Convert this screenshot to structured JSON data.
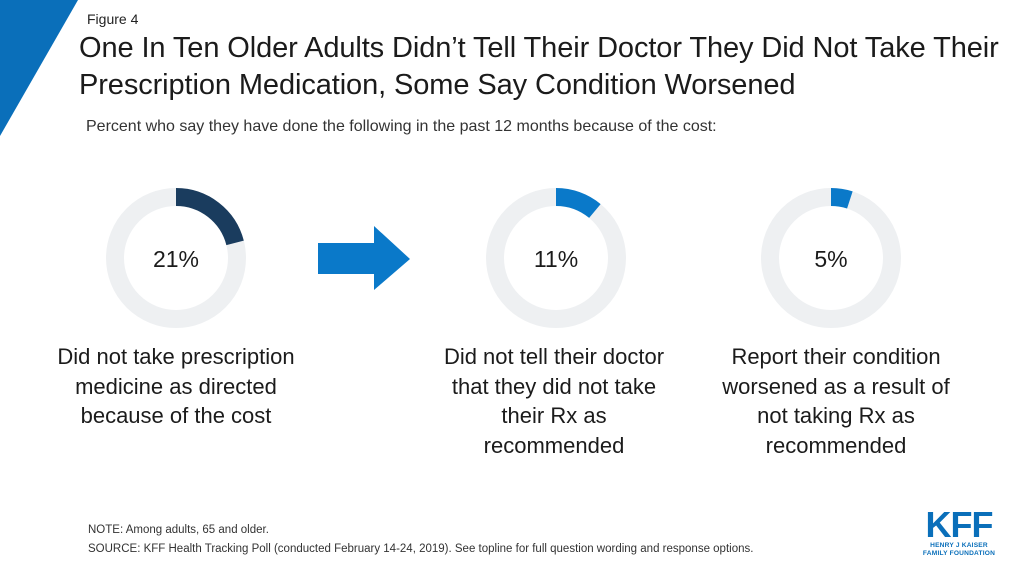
{
  "figure_label": "Figure 4",
  "title": "One In Ten Older Adults Didn’t Tell Their Doctor They Did Not Take Their Prescription Medication, Some Say Condition Worsened",
  "subtitle": "Percent who say they have done the following in the past 12 months because of the cost:",
  "chart_data": {
    "type": "donut",
    "unit": "%",
    "items": [
      {
        "value": 21,
        "value_label": "21%",
        "label": "Did not take prescription medicine as directed because of the cost",
        "color": "#1a3c5e"
      },
      {
        "value": 11,
        "value_label": "11%",
        "label": "Did not tell their doctor that they did not take their Rx as recommended",
        "color": "#0a79c9"
      },
      {
        "value": 5,
        "value_label": "5%",
        "label": "Report their condition worsened as a result of not taking Rx as recommended",
        "color": "#0a79c9"
      }
    ],
    "track_color": "#eef0f2",
    "arrow_color": "#0a79c9"
  },
  "note": "NOTE: Among adults, 65 and older.",
  "source": "SOURCE: KFF Health Tracking Poll (conducted February 14-24, 2019). See topline for full question wording and response options.",
  "logo": {
    "mark": "KFF",
    "line1": "HENRY J KAISER",
    "line2": "FAMILY FOUNDATION",
    "color": "#0a6fba"
  },
  "corner_color": "#0a6fba"
}
